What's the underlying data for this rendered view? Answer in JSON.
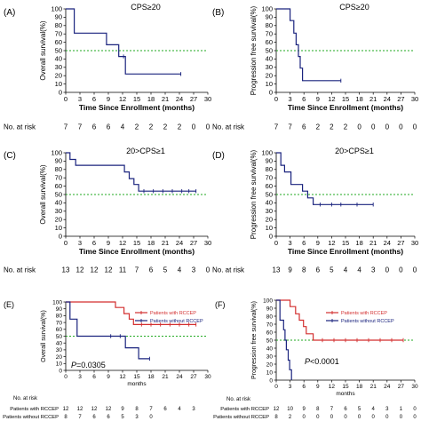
{
  "chart_data": [
    {
      "type": "line",
      "panel_label": "(A)",
      "title": "CPS≥20",
      "xlabel": "Time Since Enrollment (months)",
      "ylabel": "Overall survival(%)",
      "xlim": [
        0,
        30
      ],
      "ylim": [
        0,
        100
      ],
      "x_ticks": [
        "0",
        "3",
        "6",
        "9",
        "12",
        "15",
        "18",
        "21",
        "24",
        "27",
        "30"
      ],
      "y_ticks": [
        "0",
        "10",
        "20",
        "30",
        "40",
        "50",
        "60",
        "70",
        "80",
        "90",
        "100"
      ],
      "reference_line": {
        "y": 50,
        "color": "#22aa22",
        "style": "dotted"
      },
      "series": [
        {
          "color": "#1a237e",
          "steps": [
            [
              0,
              100
            ],
            [
              1.8,
              100
            ],
            [
              1.8,
              71
            ],
            [
              8.6,
              71
            ],
            [
              8.6,
              57
            ],
            [
              11.2,
              57
            ],
            [
              11.2,
              43
            ],
            [
              12.6,
              43
            ],
            [
              12.6,
              22
            ],
            [
              24.3,
              22
            ]
          ],
          "censor": [
            [
              12.2,
              43
            ],
            [
              24.3,
              22
            ]
          ]
        }
      ],
      "risk_label": "No. at risk",
      "at_risk": [
        {
          "name": "",
          "values": [
            "7",
            "7",
            "6",
            "6",
            "4",
            "2",
            "2",
            "2",
            "2",
            "0",
            "0"
          ]
        }
      ]
    },
    {
      "type": "line",
      "panel_label": "(B)",
      "title": "CPS≥20",
      "xlabel": "Time Since Enrollment (months)",
      "ylabel": "Progression free survival(%)",
      "xlim": [
        0,
        30
      ],
      "ylim": [
        0,
        100
      ],
      "x_ticks": [
        "0",
        "3",
        "6",
        "9",
        "12",
        "15",
        "18",
        "21",
        "24",
        "27",
        "30"
      ],
      "y_ticks": [
        "0",
        "10",
        "20",
        "30",
        "40",
        "50",
        "60",
        "70",
        "80",
        "90",
        "100"
      ],
      "reference_line": {
        "y": 50,
        "color": "#22aa22",
        "style": "dotted"
      },
      "series": [
        {
          "color": "#1a237e",
          "steps": [
            [
              0,
              100
            ],
            [
              3.0,
              100
            ],
            [
              3.0,
              86
            ],
            [
              3.8,
              86
            ],
            [
              3.8,
              71
            ],
            [
              4.3,
              71
            ],
            [
              4.3,
              57
            ],
            [
              4.8,
              57
            ],
            [
              4.8,
              43
            ],
            [
              5.2,
              43
            ],
            [
              5.2,
              29
            ],
            [
              5.7,
              29
            ],
            [
              5.7,
              14
            ],
            [
              14.0,
              14
            ]
          ],
          "censor": [
            [
              14.0,
              14
            ]
          ]
        }
      ],
      "risk_label": "No. at risk",
      "at_risk": [
        {
          "name": "",
          "values": [
            "7",
            "7",
            "6",
            "2",
            "2",
            "2",
            "0",
            "0",
            "0",
            "0",
            "0"
          ]
        }
      ]
    },
    {
      "type": "line",
      "panel_label": "(C)",
      "title": "20>CPS≥1",
      "xlabel": "Time Since Enrollment (months)",
      "ylabel": "Overall survival(%)",
      "xlim": [
        0,
        30
      ],
      "ylim": [
        0,
        100
      ],
      "x_ticks": [
        "0",
        "3",
        "6",
        "9",
        "12",
        "15",
        "18",
        "21",
        "24",
        "27",
        "30"
      ],
      "y_ticks": [
        "0",
        "10",
        "20",
        "30",
        "40",
        "50",
        "60",
        "70",
        "80",
        "90",
        "100"
      ],
      "reference_line": {
        "y": 50,
        "color": "#22aa22",
        "style": "dotted"
      },
      "series": [
        {
          "color": "#1a237e",
          "steps": [
            [
              0,
              100
            ],
            [
              0.9,
              100
            ],
            [
              0.9,
              92
            ],
            [
              2.1,
              92
            ],
            [
              2.1,
              85
            ],
            [
              12.4,
              85
            ],
            [
              12.4,
              77
            ],
            [
              13.4,
              77
            ],
            [
              13.4,
              69
            ],
            [
              14.4,
              69
            ],
            [
              14.4,
              62
            ],
            [
              15.4,
              62
            ],
            [
              15.4,
              54
            ],
            [
              27.5,
              54
            ]
          ],
          "censor": [
            [
              16.5,
              54
            ],
            [
              18.5,
              54
            ],
            [
              20.5,
              54
            ],
            [
              22.5,
              54
            ],
            [
              24.5,
              54
            ],
            [
              26.0,
              54
            ],
            [
              27.5,
              54
            ]
          ]
        }
      ],
      "risk_label": "No. at risk",
      "at_risk": [
        {
          "name": "",
          "values": [
            "13",
            "12",
            "12",
            "12",
            "11",
            "7",
            "6",
            "5",
            "4",
            "3",
            "0"
          ]
        }
      ]
    },
    {
      "type": "line",
      "panel_label": "(D)",
      "title": "20>CPS≥1",
      "xlabel": "Time Since Enrollment (months)",
      "ylabel": "Progression free survival(%)",
      "xlim": [
        0,
        30
      ],
      "ylim": [
        0,
        100
      ],
      "x_ticks": [
        "0",
        "3",
        "6",
        "9",
        "12",
        "15",
        "18",
        "21",
        "24",
        "27",
        "30"
      ],
      "y_ticks": [
        "0",
        "10",
        "20",
        "30",
        "40",
        "50",
        "60",
        "70",
        "80",
        "90",
        "100"
      ],
      "reference_line": {
        "y": 50,
        "color": "#22aa22",
        "style": "dotted"
      },
      "series": [
        {
          "color": "#1a237e",
          "steps": [
            [
              0,
              100
            ],
            [
              1.0,
              100
            ],
            [
              1.0,
              85
            ],
            [
              1.8,
              85
            ],
            [
              1.8,
              77
            ],
            [
              3.2,
              77
            ],
            [
              3.2,
              62
            ],
            [
              5.7,
              62
            ],
            [
              5.7,
              54
            ],
            [
              6.8,
              54
            ],
            [
              6.8,
              46
            ],
            [
              8.0,
              46
            ],
            [
              8.0,
              38
            ],
            [
              21.0,
              38
            ]
          ],
          "censor": [
            [
              9.5,
              38
            ],
            [
              12.0,
              38
            ],
            [
              14.0,
              38
            ],
            [
              17.5,
              38
            ],
            [
              21.0,
              38
            ]
          ]
        }
      ],
      "risk_label": "No. at risk",
      "at_risk": [
        {
          "name": "",
          "values": [
            "13",
            "9",
            "8",
            "6",
            "5",
            "4",
            "4",
            "3",
            "0",
            "0",
            "0"
          ]
        }
      ]
    },
    {
      "type": "line",
      "panel_label": "(E)",
      "title": "",
      "xlabel": "months",
      "ylabel": "Overall survival(%)",
      "xlim": [
        0,
        30
      ],
      "ylim": [
        0,
        100
      ],
      "x_ticks": [
        "0",
        "3",
        "6",
        "9",
        "12",
        "15",
        "18",
        "21",
        "24",
        "27",
        "30"
      ],
      "y_ticks": [
        "0",
        "10",
        "20",
        "30",
        "40",
        "50",
        "60",
        "70",
        "80",
        "90",
        "100"
      ],
      "reference_line": {
        "y": 50,
        "color": "#22aa22",
        "style": "dotted"
      },
      "annotation": {
        "prefix": "P",
        "text": "=0.0305"
      },
      "legend_position": "top-right",
      "series": [
        {
          "name": "Patients with RCCEP",
          "color": "#d32f2f",
          "steps": [
            [
              0,
              100
            ],
            [
              10.5,
              100
            ],
            [
              10.5,
              92
            ],
            [
              12.3,
              92
            ],
            [
              12.3,
              83
            ],
            [
              13.4,
              83
            ],
            [
              13.4,
              75
            ],
            [
              14.3,
              75
            ],
            [
              14.3,
              67
            ],
            [
              27.5,
              67
            ]
          ],
          "censor": [
            [
              16.0,
              67
            ],
            [
              18.0,
              67
            ],
            [
              20.0,
              67
            ],
            [
              22.0,
              67
            ],
            [
              24.0,
              67
            ],
            [
              26.0,
              67
            ],
            [
              27.5,
              67
            ]
          ]
        },
        {
          "name": "Patients without RCCEP",
          "color": "#1a237e",
          "steps": [
            [
              0,
              100
            ],
            [
              0.9,
              100
            ],
            [
              0.9,
              75
            ],
            [
              2.4,
              75
            ],
            [
              2.4,
              50
            ],
            [
              12.6,
              50
            ],
            [
              12.6,
              33
            ],
            [
              15.4,
              33
            ],
            [
              15.4,
              17
            ],
            [
              17.7,
              17
            ]
          ],
          "censor": [
            [
              9.5,
              50
            ],
            [
              11.5,
              50
            ],
            [
              17.7,
              17
            ]
          ]
        }
      ],
      "risk_label": "No. at risk",
      "at_risk": [
        {
          "name": "Patients with RCCEP",
          "values": [
            "12",
            "12",
            "12",
            "12",
            "9",
            "8",
            "7",
            "6",
            "4",
            "3",
            ""
          ]
        },
        {
          "name": "Patients without RCCEP",
          "values": [
            "8",
            "7",
            "6",
            "6",
            "5",
            "3",
            "0",
            "",
            "",
            "",
            ""
          ]
        }
      ]
    },
    {
      "type": "line",
      "panel_label": "(F)",
      "title": "",
      "xlabel": "months",
      "ylabel": "Progression free survival(%)",
      "xlim": [
        0,
        30
      ],
      "ylim": [
        0,
        100
      ],
      "x_ticks": [
        "0",
        "3",
        "6",
        "9",
        "12",
        "15",
        "18",
        "21",
        "24",
        "27",
        "30"
      ],
      "y_ticks": [
        "0",
        "10",
        "20",
        "30",
        "40",
        "50",
        "60",
        "70",
        "80",
        "90",
        "100"
      ],
      "reference_line": {
        "y": 50,
        "color": "#22aa22",
        "style": "dotted"
      },
      "annotation": {
        "prefix": "P",
        "text": "<0.0001"
      },
      "legend_position": "top-right",
      "series": [
        {
          "name": "Patients with RCCEP",
          "color": "#d32f2f",
          "steps": [
            [
              0,
              100
            ],
            [
              3.0,
              100
            ],
            [
              3.0,
              92
            ],
            [
              4.2,
              92
            ],
            [
              4.2,
              83
            ],
            [
              5.0,
              83
            ],
            [
              5.0,
              75
            ],
            [
              5.9,
              75
            ],
            [
              5.9,
              67
            ],
            [
              6.5,
              67
            ],
            [
              6.5,
              58
            ],
            [
              8.0,
              58
            ],
            [
              8.0,
              50
            ],
            [
              27.5,
              50
            ]
          ],
          "censor": [
            [
              10.0,
              50
            ],
            [
              12.5,
              50
            ],
            [
              15.0,
              50
            ],
            [
              17.5,
              50
            ],
            [
              20.0,
              50
            ],
            [
              22.5,
              50
            ],
            [
              25.0,
              50
            ],
            [
              27.5,
              50
            ]
          ]
        },
        {
          "name": "Patients without RCCEP",
          "color": "#1a237e",
          "steps": [
            [
              0,
              100
            ],
            [
              0.8,
              100
            ],
            [
              0.8,
              75
            ],
            [
              1.6,
              75
            ],
            [
              1.6,
              63
            ],
            [
              1.9,
              63
            ],
            [
              1.9,
              50
            ],
            [
              2.2,
              50
            ],
            [
              2.2,
              38
            ],
            [
              2.6,
              38
            ],
            [
              2.6,
              25
            ],
            [
              2.9,
              25
            ],
            [
              2.9,
              13
            ],
            [
              3.3,
              13
            ],
            [
              3.3,
              0
            ]
          ],
          "censor": []
        }
      ],
      "risk_label": "No. at risk",
      "at_risk": [
        {
          "name": "Patients with RCCEP",
          "values": [
            "12",
            "10",
            "9",
            "8",
            "7",
            "6",
            "5",
            "4",
            "3",
            "1",
            "0"
          ]
        },
        {
          "name": "Patients without RCCEP",
          "values": [
            "8",
            "2",
            "0",
            "0",
            "0",
            "0",
            "0",
            "0",
            "0",
            "0",
            "0"
          ]
        }
      ]
    }
  ]
}
